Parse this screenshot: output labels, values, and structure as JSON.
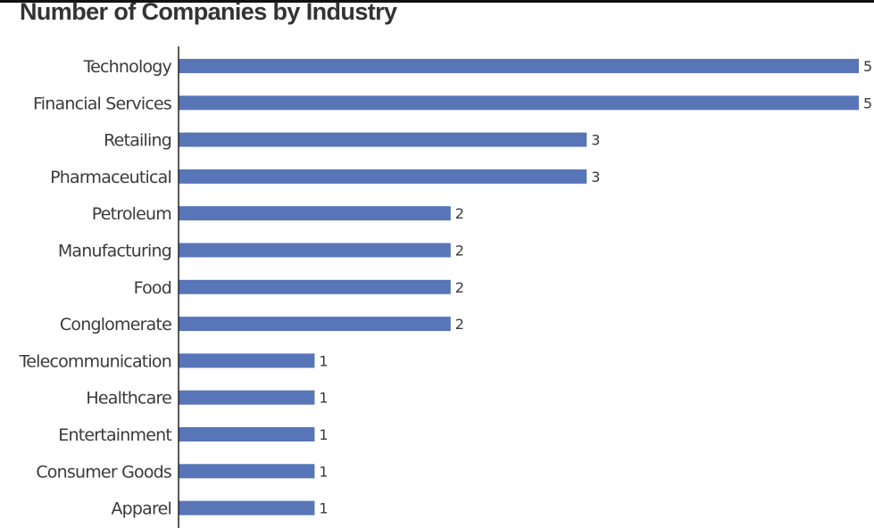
{
  "chart_data": {
    "type": "bar",
    "orientation": "horizontal",
    "title": "Number of Companies by Industry",
    "xlabel": "",
    "ylabel": "",
    "categories": [
      "Technology",
      "Financial Services",
      "Retailing",
      "Pharmaceutical",
      "Petroleum",
      "Manufacturing",
      "Food",
      "Conglomerate",
      "Telecommunication",
      "Healthcare",
      "Entertainment",
      "Consumer Goods",
      "Apparel"
    ],
    "values": [
      5,
      5,
      3,
      3,
      2,
      2,
      2,
      2,
      1,
      1,
      1,
      1,
      1
    ],
    "xlim": [
      0,
      5
    ],
    "bar_color": "#5875b8",
    "data_labels": true,
    "grid": false
  }
}
